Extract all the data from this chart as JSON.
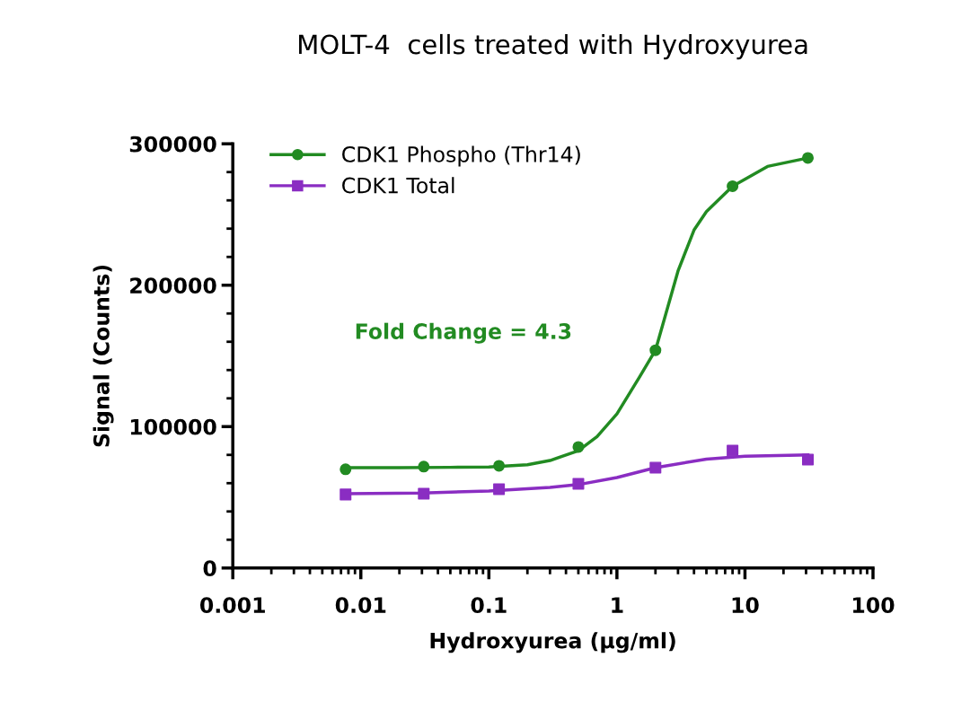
{
  "chart_data": {
    "type": "scatter",
    "title": "MOLT-4  cells treated with Hydroxyurea",
    "xlabel": "Hydroxyurea (µg/ml)",
    "ylabel": "Signal (Counts)",
    "series": [
      {
        "name": "CDK1 Phospho (Thr14)",
        "color": "#228b22",
        "marker": "circle",
        "x": [
          0.0076,
          0.031,
          0.12,
          0.5,
          2,
          8,
          31
        ],
        "values": [
          69800,
          71700,
          72300,
          85600,
          154000,
          270000,
          290000
        ]
      },
      {
        "name": "CDK1 Total",
        "color": "#8a2dc2",
        "marker": "square",
        "x": [
          0.0076,
          0.031,
          0.12,
          0.5,
          2,
          8,
          31
        ],
        "values": [
          52000,
          52600,
          55800,
          59600,
          71000,
          83000,
          76700
        ]
      },
      {
        "type": "line",
        "color": "#228b22",
        "x": [
          0.0076,
          0.02,
          0.05,
          0.1,
          0.2,
          0.3,
          0.5,
          0.7,
          1,
          1.5,
          2,
          3,
          4,
          5,
          8,
          15,
          31
        ],
        "values": [
          71000,
          71000,
          71200,
          71500,
          73000,
          76000,
          83000,
          93000,
          109000,
          135000,
          154000,
          210000,
          239000,
          252000,
          270000,
          284000,
          290000
        ]
      },
      {
        "type": "line",
        "color": "#8a2dc2",
        "x": [
          0.0076,
          0.03,
          0.1,
          0.3,
          0.5,
          1,
          2,
          5,
          10,
          31
        ],
        "values": [
          52500,
          53000,
          54500,
          57000,
          59000,
          64000,
          71000,
          77000,
          79000,
          80000
        ]
      }
    ],
    "xlim": [
      0.001,
      100
    ],
    "xticks": [
      0.001,
      0.01,
      0.1,
      1,
      10,
      100
    ],
    "ylim": [
      0,
      300000
    ],
    "yticks": [
      0,
      100000,
      200000,
      300000
    ],
    "log": "x",
    "grid": false,
    "legend": "top left",
    "line_style": "solid",
    "annotations": [
      "Fold Change = 4.3"
    ]
  }
}
